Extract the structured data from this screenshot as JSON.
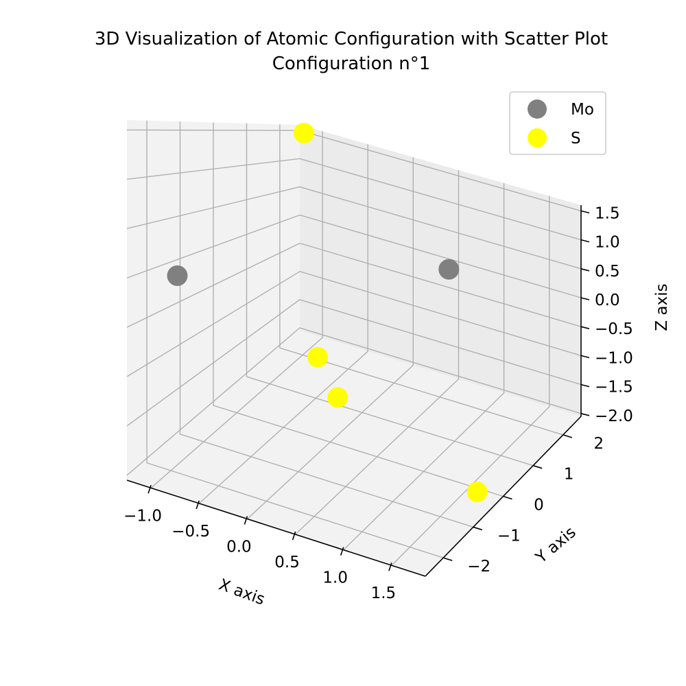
{
  "chart_data": {
    "type": "scatter",
    "title_lines": [
      "3D Visualization of Atomic Configuration with Scatter Plot",
      "Configuration n°1"
    ],
    "xlabel": "X axis",
    "ylabel": "Y axis",
    "zlabel": "Z axis",
    "xlim": [
      -1.25,
      1.85
    ],
    "ylim": [
      -2.6,
      2.6
    ],
    "zlim": [
      -2.05,
      1.6
    ],
    "xticks": [
      -1.0,
      -0.5,
      0.0,
      0.5,
      1.0,
      1.5
    ],
    "xtick_labels": [
      "−1.0",
      "−0.5",
      "0.0",
      "0.5",
      "1.0",
      "1.5"
    ],
    "yticks": [
      -2,
      -1,
      0,
      1,
      2
    ],
    "ytick_labels": [
      "−2",
      "−1",
      "0",
      "1",
      "2"
    ],
    "zticks": [
      -2.0,
      -1.5,
      -1.0,
      -0.5,
      0.0,
      0.5,
      1.0,
      1.5
    ],
    "ztick_labels": [
      "−2.0",
      "−1.5",
      "−1.0",
      "−0.5",
      "0.0",
      "0.5",
      "1.0",
      "1.5"
    ],
    "grid": true,
    "legend_position": "top-right",
    "series": [
      {
        "name": "Mo",
        "color": "#808080",
        "points": [
          {
            "x": -1.0,
            "y": -1.8,
            "z": 0.0
          },
          {
            "x": 0.6,
            "y": 2.0,
            "z": 0.05
          }
        ]
      },
      {
        "name": "S",
        "color": "#ffff00",
        "points": [
          {
            "x": -1.15,
            "y": 2.45,
            "z": 1.5
          },
          {
            "x": -0.8,
            "y": 1.9,
            "z": -1.95
          },
          {
            "x": -0.3,
            "y": 1.1,
            "z": -2.0
          },
          {
            "x": 1.7,
            "y": -0.4,
            "z": -1.9
          }
        ]
      }
    ]
  }
}
